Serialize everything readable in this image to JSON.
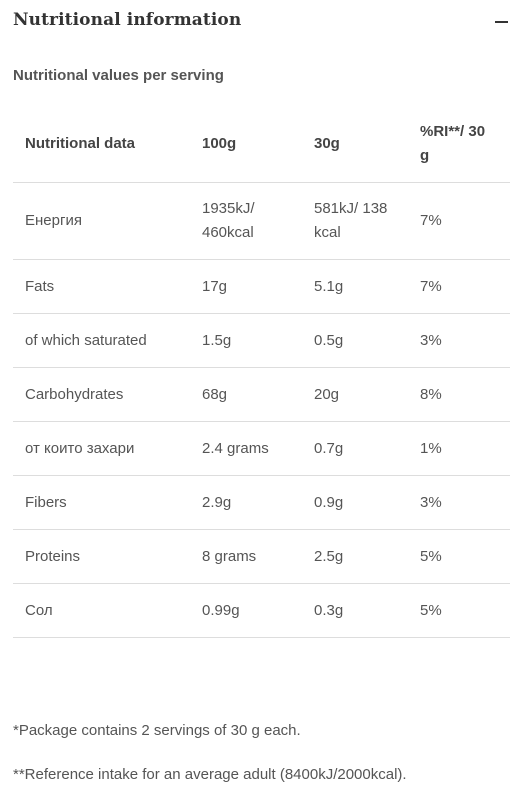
{
  "section": {
    "title": "Nutritional information",
    "toggle_icon": "minus-icon"
  },
  "subtitle": "Nutritional values per serving",
  "table": {
    "headers": [
      "Nutritional data",
      "100g",
      "30g",
      "%RI**/ 30 g"
    ],
    "rows": [
      [
        "Енергия",
        "1935kJ/ 460kcal",
        "581kJ/ 138 kcal",
        "7%"
      ],
      [
        "Fats",
        "17g",
        "5.1g",
        "7%"
      ],
      [
        "of which saturated",
        "1.5g",
        "0.5g",
        "3%"
      ],
      [
        "Carbohydrates",
        "68g",
        "20g",
        "8%"
      ],
      [
        "от които захари",
        "2.4 grams",
        "0.7g",
        "1%"
      ],
      [
        "Fibers",
        "2.9g",
        "0.9g",
        "3%"
      ],
      [
        "Proteins",
        "8 grams",
        "2.5g",
        "5%"
      ],
      [
        "Сол",
        "0.99g",
        "0.3g",
        "5%"
      ]
    ]
  },
  "footnotes": [
    "*Package contains 2 servings of 30 g each.",
    "**Reference intake for an average adult (8400kJ/2000kcal)."
  ]
}
